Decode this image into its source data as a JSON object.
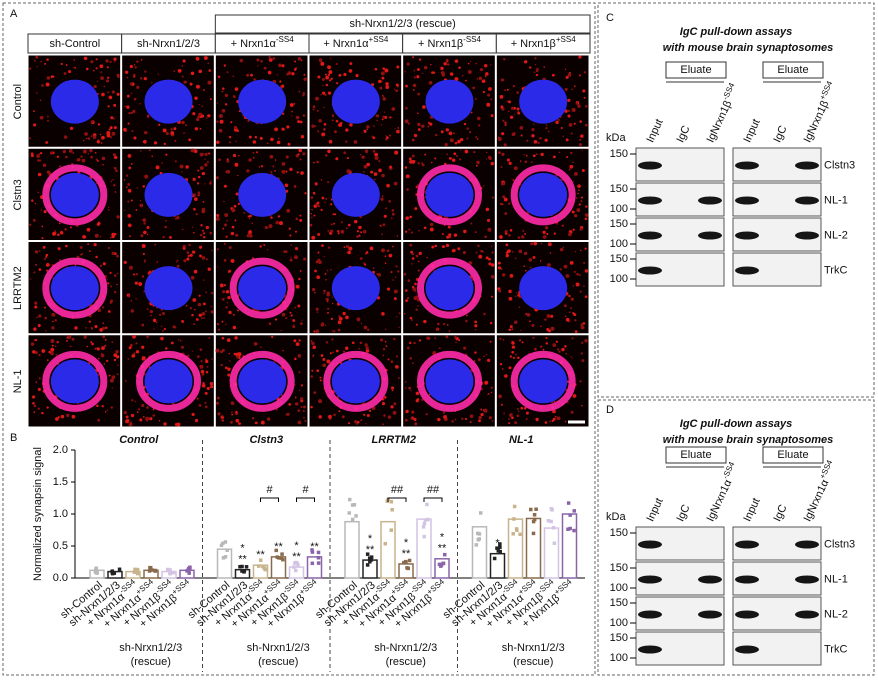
{
  "panel_a": {
    "label": "A",
    "rescue_header": "sh-Nrxn1/2/3 (rescue)",
    "columns": [
      "sh-Control",
      "sh-Nrxn1/2/3",
      {
        "base": "+ Nrxn1α",
        "sup": "-SS4"
      },
      {
        "base": "+ Nrxn1α",
        "sup": "+SS4"
      },
      {
        "base": "+ Nrxn1β",
        "sup": "-SS4"
      },
      {
        "base": "+ Nrxn1β",
        "sup": "+SS4"
      }
    ],
    "rows": [
      "Control",
      "Clstn3",
      "LRRTM2",
      "NL-1"
    ]
  },
  "chart_data": {
    "type": "grouped-bar",
    "label": "B",
    "y_label": "Normalized synapsin signal",
    "categories": [
      "sh-Control",
      "sh-Nrxn1/2/3",
      {
        "base": "+ Nrxn1α",
        "sup": "-SS4"
      },
      {
        "base": "+ Nrxn1α",
        "sup": "+SS4"
      },
      {
        "base": "+ Nrxn1β",
        "sup": "-SS4"
      },
      {
        "base": "+ Nrxn1β",
        "sup": "+SS4"
      }
    ],
    "colors": [
      "#b8b8b8",
      "#222222",
      "#c8b48c",
      "#8a6a4c",
      "#d4c4e4",
      "#8a64a8"
    ],
    "rescue_label": [
      "sh-Nrxn1/2/3",
      "(rescue)"
    ],
    "groups": [
      {
        "name": "Control",
        "values": [
          0.12,
          0.1,
          0.1,
          0.12,
          0.1,
          0.12
        ],
        "significance": [
          null,
          null,
          null,
          null,
          null,
          null
        ],
        "brackets": []
      },
      {
        "name": "Clstn3",
        "values": [
          0.45,
          0.13,
          0.2,
          0.33,
          0.17,
          0.33
        ],
        "significance": [
          null,
          [
            "*",
            "**"
          ],
          [
            "**"
          ],
          [
            "**"
          ],
          [
            "*",
            "**"
          ],
          [
            "**"
          ]
        ],
        "brackets": [
          {
            "from": 2,
            "to": 3,
            "label": "#"
          },
          {
            "from": 4,
            "to": 5,
            "label": "#"
          }
        ]
      },
      {
        "name": "LRRTM2",
        "values": [
          0.88,
          0.28,
          0.88,
          0.22,
          0.92,
          0.3
        ],
        "significance": [
          null,
          [
            "*",
            "**"
          ],
          null,
          [
            "*",
            "**"
          ],
          null,
          [
            "*",
            "**"
          ]
        ],
        "brackets": [
          {
            "from": 2,
            "to": 3,
            "label": "##"
          },
          {
            "from": 4,
            "to": 5,
            "label": "##"
          }
        ]
      },
      {
        "name": "NL-1",
        "values": [
          0.8,
          0.38,
          0.92,
          0.93,
          0.78,
          1.0
        ],
        "significance": [
          null,
          [
            "*"
          ],
          null,
          null,
          null,
          null
        ],
        "brackets": []
      }
    ],
    "ylim": [
      0,
      2
    ],
    "yticks": [
      {
        "value": 0,
        "label": "0.0"
      },
      {
        "value": 0.5,
        "label": "0.5"
      },
      {
        "value": 1,
        "label": "1.0"
      },
      {
        "value": 1.5,
        "label": "1.5"
      },
      {
        "value": 2,
        "label": "2.0"
      }
    ]
  },
  "panels_blot": [
    {
      "label": "C",
      "title": [
        "IgC pull-down assays",
        "with mouse brain synaptosomes"
      ],
      "eluate": "Eluate",
      "kda": "kDa",
      "lanes": [
        [
          "Input",
          "IgC",
          {
            "base": "IgNrxn1β",
            "sup": "-SS4"
          }
        ],
        [
          "Input",
          "IgC",
          {
            "base": "IgNrxn1β",
            "sup": "+SS4"
          }
        ]
      ],
      "rows": [
        {
          "protein": "Clstn3",
          "markers": [
            150
          ]
        },
        {
          "protein": "NL-1",
          "markers": [
            150,
            100
          ]
        },
        {
          "protein": "NL-2",
          "markers": [
            150,
            100
          ]
        },
        {
          "protein": "TrkC",
          "markers": [
            150,
            100
          ]
        }
      ]
    },
    {
      "label": "D",
      "title": [
        "IgC pull-down assays",
        "with mouse brain synaptosomes"
      ],
      "eluate": "Eluate",
      "kda": "kDa",
      "lanes": [
        [
          "Input",
          "IgC",
          {
            "base": "IgNrxn1α",
            "sup": "-SS4"
          }
        ],
        [
          "Input",
          "IgC",
          {
            "base": "IgNrxn1α",
            "sup": "+SS4"
          }
        ]
      ],
      "rows": [
        {
          "protein": "Clstn3",
          "markers": [
            150
          ]
        },
        {
          "protein": "NL-1",
          "markers": [
            150,
            100
          ]
        },
        {
          "protein": "NL-2",
          "markers": [
            150,
            100
          ]
        },
        {
          "protein": "TrkC",
          "markers": [
            150,
            100
          ]
        }
      ]
    }
  ]
}
